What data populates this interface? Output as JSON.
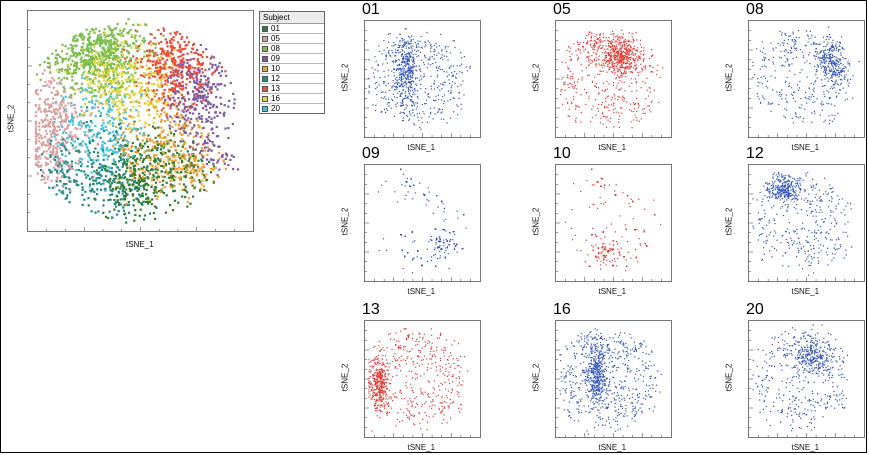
{
  "chart_data": [
    {
      "type": "scatter",
      "panel": "overview",
      "xlabel": "tSNE_1",
      "ylabel": "tSNE_2",
      "legend": {
        "title": "Subject",
        "placement": "right",
        "entries": [
          {
            "label": "01",
            "color": "#2e7d32"
          },
          {
            "label": "05",
            "color": "#d9a0a0"
          },
          {
            "label": "08",
            "color": "#7cbd4e"
          },
          {
            "label": "09",
            "color": "#7b5aa6"
          },
          {
            "label": "10",
            "color": "#f0a030"
          },
          {
            "label": "12",
            "color": "#1e8c8c"
          },
          {
            "label": "13",
            "color": "#e94e3c"
          },
          {
            "label": "16",
            "color": "#e6d23a"
          },
          {
            "label": "20",
            "color": "#3ec3e0"
          }
        ]
      }
    },
    {
      "type": "scatter",
      "title": "01",
      "xlabel": "tSNE_1",
      "ylabel": "tSNE_2",
      "color": "#3355b8"
    },
    {
      "type": "scatter",
      "title": "05",
      "xlabel": "tSNE_1",
      "ylabel": "tSNE_2",
      "color": "#e53935"
    },
    {
      "type": "scatter",
      "title": "08",
      "xlabel": "tSNE_1",
      "ylabel": "tSNE_2",
      "color": "#3355b8"
    },
    {
      "type": "scatter",
      "title": "09",
      "xlabel": "tSNE_1",
      "ylabel": "tSNE_2",
      "color": "#3355b8"
    },
    {
      "type": "scatter",
      "title": "10",
      "xlabel": "tSNE_1",
      "ylabel": "tSNE_2",
      "color": "#e53935"
    },
    {
      "type": "scatter",
      "title": "12",
      "xlabel": "tSNE_1",
      "ylabel": "tSNE_2",
      "color": "#3355b8"
    },
    {
      "type": "scatter",
      "title": "13",
      "xlabel": "tSNE_1",
      "ylabel": "tSNE_2",
      "color": "#e53935"
    },
    {
      "type": "scatter",
      "title": "16",
      "xlabel": "tSNE_1",
      "ylabel": "tSNE_2",
      "color": "#3355b8"
    },
    {
      "type": "scatter",
      "title": "20",
      "xlabel": "tSNE_1",
      "ylabel": "tSNE_2",
      "color": "#3355b8"
    }
  ]
}
